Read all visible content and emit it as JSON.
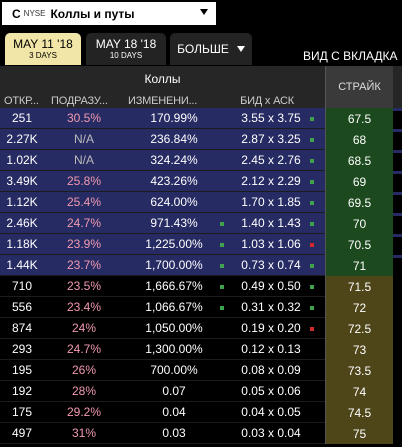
{
  "colors": {
    "itm_bg": "#272b63",
    "otm_bg": "#000000",
    "strike_itm_bg": "#1c4a1e",
    "strike_otm_bg": "#4e4519",
    "iv_text": "#f19ab0",
    "active_tab_bg": "#f1e6a8",
    "flag_green": "#3fa34d",
    "flag_red": "#d12a2a"
  },
  "selector": {
    "symbol": "C",
    "exchange": "NYSE",
    "name": "Коллы и путы",
    "icon": "chevron-down-icon"
  },
  "tabs": [
    {
      "label": "MAY 11 '18",
      "sub": "3 DAYS",
      "active": true
    },
    {
      "label": "MAY 18 '18",
      "sub": "10 DAYS",
      "active": false
    }
  ],
  "more_label": "БОЛЬШЕ",
  "view_label": "ВИД С ВКЛАДКА",
  "headers": {
    "calls": "Коллы",
    "open_interest": "ОТКР...",
    "implied_vol": "ПОДРАЗУ...",
    "change": "ИЗМЕНЕНИ...",
    "bid_ask": "БИД x АСК",
    "strike": "СТРАЙК"
  },
  "rows": [
    {
      "oi": "251",
      "iv": "30.5%",
      "ch": "170.99%",
      "ba": "3.55 x 3.75",
      "strike": "67.5",
      "itm": true,
      "flag_pre": null,
      "flag_post": "green"
    },
    {
      "oi": "2.27K",
      "iv": "N/A",
      "ch": "236.84%",
      "ba": "2.87 x 3.25",
      "strike": "68",
      "itm": true,
      "flag_pre": null,
      "flag_post": "green"
    },
    {
      "oi": "1.02K",
      "iv": "N/A",
      "ch": "324.24%",
      "ba": "2.45 x 2.76",
      "strike": "68.5",
      "itm": true,
      "flag_pre": null,
      "flag_post": "green"
    },
    {
      "oi": "3.49K",
      "iv": "25.8%",
      "ch": "423.26%",
      "ba": "2.12 x 2.29",
      "strike": "69",
      "itm": true,
      "flag_pre": null,
      "flag_post": "green"
    },
    {
      "oi": "1.12K",
      "iv": "25.4%",
      "ch": "624.00%",
      "ba": "1.70 x 1.85",
      "strike": "69.5",
      "itm": true,
      "flag_pre": null,
      "flag_post": "green"
    },
    {
      "oi": "2.46K",
      "iv": "24.7%",
      "ch": "971.43%",
      "ba": "1.40 x 1.43",
      "strike": "70",
      "itm": true,
      "flag_pre": "green",
      "flag_post": "green"
    },
    {
      "oi": "1.18K",
      "iv": "23.9%",
      "ch": "1,225.00%",
      "ba": "1.03 x 1.06",
      "strike": "70.5",
      "itm": true,
      "flag_pre": "green",
      "flag_post": "red"
    },
    {
      "oi": "1.44K",
      "iv": "23.7%",
      "ch": "1,700.00%",
      "ba": "0.73 x 0.74",
      "strike": "71",
      "itm": true,
      "flag_pre": "green",
      "flag_post": "green"
    },
    {
      "oi": "710",
      "iv": "23.5%",
      "ch": "1,666.67%",
      "ba": "0.49 x 0.50",
      "strike": "71.5",
      "itm": false,
      "flag_pre": "green",
      "flag_post": "green"
    },
    {
      "oi": "556",
      "iv": "23.4%",
      "ch": "1,066.67%",
      "ba": "0.31 x 0.32",
      "strike": "72",
      "itm": false,
      "flag_pre": "green",
      "flag_post": "green"
    },
    {
      "oi": "874",
      "iv": "24%",
      "ch": "1,050.00%",
      "ba": "0.19 x 0.20",
      "strike": "72.5",
      "itm": false,
      "flag_pre": null,
      "flag_post": "red"
    },
    {
      "oi": "293",
      "iv": "24.7%",
      "ch": "1,300.00%",
      "ba": "0.12 x 0.13",
      "strike": "73",
      "itm": false,
      "flag_pre": null,
      "flag_post": null
    },
    {
      "oi": "195",
      "iv": "26%",
      "ch": "700.00%",
      "ba": "0.08 x 0.09",
      "strike": "73.5",
      "itm": false,
      "flag_pre": null,
      "flag_post": null
    },
    {
      "oi": "192",
      "iv": "28%",
      "ch": "0.07",
      "ba": "0.05 x 0.06",
      "strike": "74",
      "itm": false,
      "flag_pre": null,
      "flag_post": null
    },
    {
      "oi": "175",
      "iv": "29.2%",
      "ch": "0.04",
      "ba": "0.04 x 0.05",
      "strike": "74.5",
      "itm": false,
      "flag_pre": null,
      "flag_post": null
    },
    {
      "oi": "497",
      "iv": "31%",
      "ch": "0.03",
      "ba": "0.03 x 0.04",
      "strike": "75",
      "itm": false,
      "flag_pre": null,
      "flag_post": null
    }
  ]
}
